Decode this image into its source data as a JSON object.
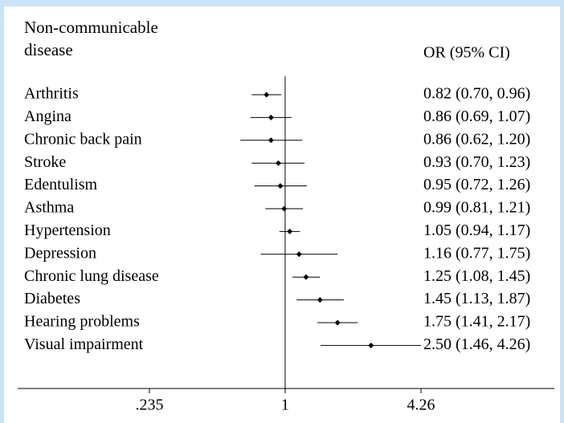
{
  "chart_data": {
    "type": "forest",
    "row_header": "Non-communicable disease",
    "value_header": "OR (95% CI)",
    "categories": [
      "Arthritis",
      "Angina",
      "Chronic back pain",
      "Stroke",
      "Edentulism",
      "Asthma",
      "Hypertension",
      "Depression",
      "Chronic lung disease",
      "Diabetes",
      "Hearing problems",
      "Visual impairment"
    ],
    "values": [
      0.82,
      0.86,
      0.86,
      0.93,
      0.95,
      0.99,
      1.05,
      1.16,
      1.25,
      1.45,
      1.75,
      2.5
    ],
    "lower": [
      0.7,
      0.69,
      0.62,
      0.7,
      0.72,
      0.81,
      0.94,
      0.77,
      1.08,
      1.13,
      1.41,
      1.46
    ],
    "upper": [
      0.96,
      1.07,
      1.2,
      1.23,
      1.26,
      1.21,
      1.17,
      1.75,
      1.45,
      1.87,
      2.17,
      4.26
    ],
    "value_labels": [
      "0.82 (0.70, 0.96)",
      "0.86 (0.69, 1.07)",
      "0.86 (0.62, 1.20)",
      "0.93 (0.70, 1.23)",
      "0.95 (0.72, 1.26)",
      "0.99 (0.81, 1.21)",
      "1.05 (0.94, 1.17)",
      "1.16 (0.77, 1.75)",
      "1.25 (1.08, 1.45)",
      "1.45 (1.13, 1.87)",
      "1.75 (1.41, 2.17)",
      "2.50 (1.46, 4.26)"
    ],
    "x_log": true,
    "xlim": [
      0.235,
      4.26
    ],
    "xticks": [
      {
        "value": 0.235,
        "label": ".235"
      },
      1,
      4.26
    ],
    "color": "#000000"
  }
}
